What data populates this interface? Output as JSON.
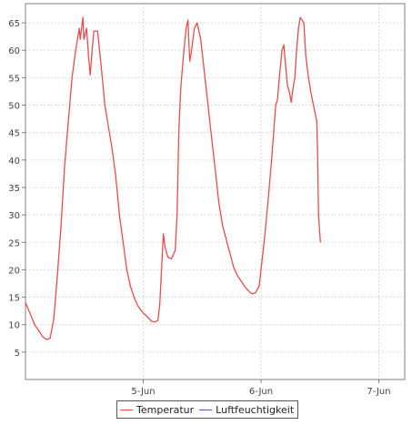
{
  "colors": {
    "plot_background": "#ffffff",
    "grid": "#d9d9d9",
    "axis": "#808080",
    "tick_text": "#444444"
  },
  "chart_data": {
    "type": "line",
    "title": "",
    "xlabel": "",
    "ylabel": "",
    "grid": true,
    "legend_position": "bottom",
    "x_unit": "day (tick 5-Jun = 5.0)",
    "xlim": [
      4.0,
      7.22
    ],
    "ylim": [
      0,
      68.5
    ],
    "y_ticks": [
      5,
      10,
      15,
      20,
      25,
      30,
      35,
      40,
      45,
      50,
      55,
      60,
      65
    ],
    "x_ticks": [
      {
        "value": 5.0,
        "label": "5-Jun"
      },
      {
        "value": 6.0,
        "label": "6-Jun"
      },
      {
        "value": 7.0,
        "label": "7-Jun"
      }
    ],
    "series": [
      {
        "name": "Temperatur",
        "color": "#e84c4c",
        "points": [
          [
            4.0,
            14.0
          ],
          [
            4.039,
            12.0
          ],
          [
            4.078,
            10.0
          ],
          [
            4.116,
            8.8
          ],
          [
            4.147,
            7.8
          ],
          [
            4.178,
            7.3
          ],
          [
            4.209,
            7.5
          ],
          [
            4.24,
            11.0
          ],
          [
            4.271,
            19.0
          ],
          [
            4.302,
            28.0
          ],
          [
            4.333,
            39.0
          ],
          [
            4.364,
            47.0
          ],
          [
            4.395,
            55.0
          ],
          [
            4.426,
            60.0
          ],
          [
            4.457,
            64.0
          ],
          [
            4.465,
            62.0
          ],
          [
            4.488,
            66.0
          ],
          [
            4.496,
            62.0
          ],
          [
            4.519,
            64.0
          ],
          [
            4.535,
            59.0
          ],
          [
            4.55,
            55.5
          ],
          [
            4.566,
            60.0
          ],
          [
            4.581,
            63.5
          ],
          [
            4.612,
            63.5
          ],
          [
            4.643,
            57.0
          ],
          [
            4.674,
            50.0
          ],
          [
            4.705,
            46.0
          ],
          [
            4.736,
            42.0
          ],
          [
            4.767,
            37.0
          ],
          [
            4.798,
            30.0
          ],
          [
            4.829,
            25.0
          ],
          [
            4.86,
            20.0
          ],
          [
            4.891,
            17.0
          ],
          [
            4.922,
            15.0
          ],
          [
            4.953,
            13.5
          ],
          [
            4.984,
            12.5
          ],
          [
            5.016,
            11.8
          ],
          [
            5.047,
            11.2
          ],
          [
            5.07,
            10.6
          ],
          [
            5.101,
            10.5
          ],
          [
            5.124,
            10.8
          ],
          [
            5.14,
            13.5
          ],
          [
            5.155,
            20.0
          ],
          [
            5.171,
            26.5
          ],
          [
            5.186,
            24.0
          ],
          [
            5.209,
            22.3
          ],
          [
            5.24,
            22.0
          ],
          [
            5.271,
            23.5
          ],
          [
            5.287,
            30.0
          ],
          [
            5.302,
            45.0
          ],
          [
            5.318,
            53.0
          ],
          [
            5.341,
            59.0
          ],
          [
            5.364,
            64.0
          ],
          [
            5.38,
            65.5
          ],
          [
            5.388,
            61.0
          ],
          [
            5.395,
            58.0
          ],
          [
            5.411,
            60.0
          ],
          [
            5.434,
            64.0
          ],
          [
            5.457,
            65.0
          ],
          [
            5.488,
            62.0
          ],
          [
            5.519,
            56.0
          ],
          [
            5.55,
            50.0
          ],
          [
            5.581,
            44.0
          ],
          [
            5.612,
            38.0
          ],
          [
            5.643,
            32.0
          ],
          [
            5.674,
            28.0
          ],
          [
            5.705,
            25.5
          ],
          [
            5.736,
            23.0
          ],
          [
            5.767,
            20.5
          ],
          [
            5.798,
            19.0
          ],
          [
            5.829,
            18.0
          ],
          [
            5.86,
            17.0
          ],
          [
            5.891,
            16.2
          ],
          [
            5.922,
            15.6
          ],
          [
            5.953,
            15.8
          ],
          [
            5.984,
            17.0
          ],
          [
            6.0,
            20.0
          ],
          [
            6.031,
            26.0
          ],
          [
            6.062,
            33.0
          ],
          [
            6.093,
            41.0
          ],
          [
            6.124,
            50.0
          ],
          [
            6.14,
            51.0
          ],
          [
            6.155,
            55.0
          ],
          [
            6.178,
            60.0
          ],
          [
            6.194,
            61.0
          ],
          [
            6.209,
            57.0
          ],
          [
            6.225,
            53.5
          ],
          [
            6.24,
            52.5
          ],
          [
            6.256,
            50.5
          ],
          [
            6.271,
            53.0
          ],
          [
            6.287,
            55.0
          ],
          [
            6.302,
            60.0
          ],
          [
            6.318,
            64.0
          ],
          [
            6.333,
            66.0
          ],
          [
            6.364,
            65.0
          ],
          [
            6.38,
            59.0
          ],
          [
            6.403,
            55.0
          ],
          [
            6.426,
            52.0
          ],
          [
            6.45,
            49.5
          ],
          [
            6.473,
            47.0
          ],
          [
            6.481,
            40.0
          ],
          [
            6.488,
            30.0
          ],
          [
            6.504,
            25.0
          ]
        ]
      },
      {
        "name": "Luftfeuchtigkeit",
        "color": "#5a5ac8",
        "points": []
      }
    ]
  }
}
